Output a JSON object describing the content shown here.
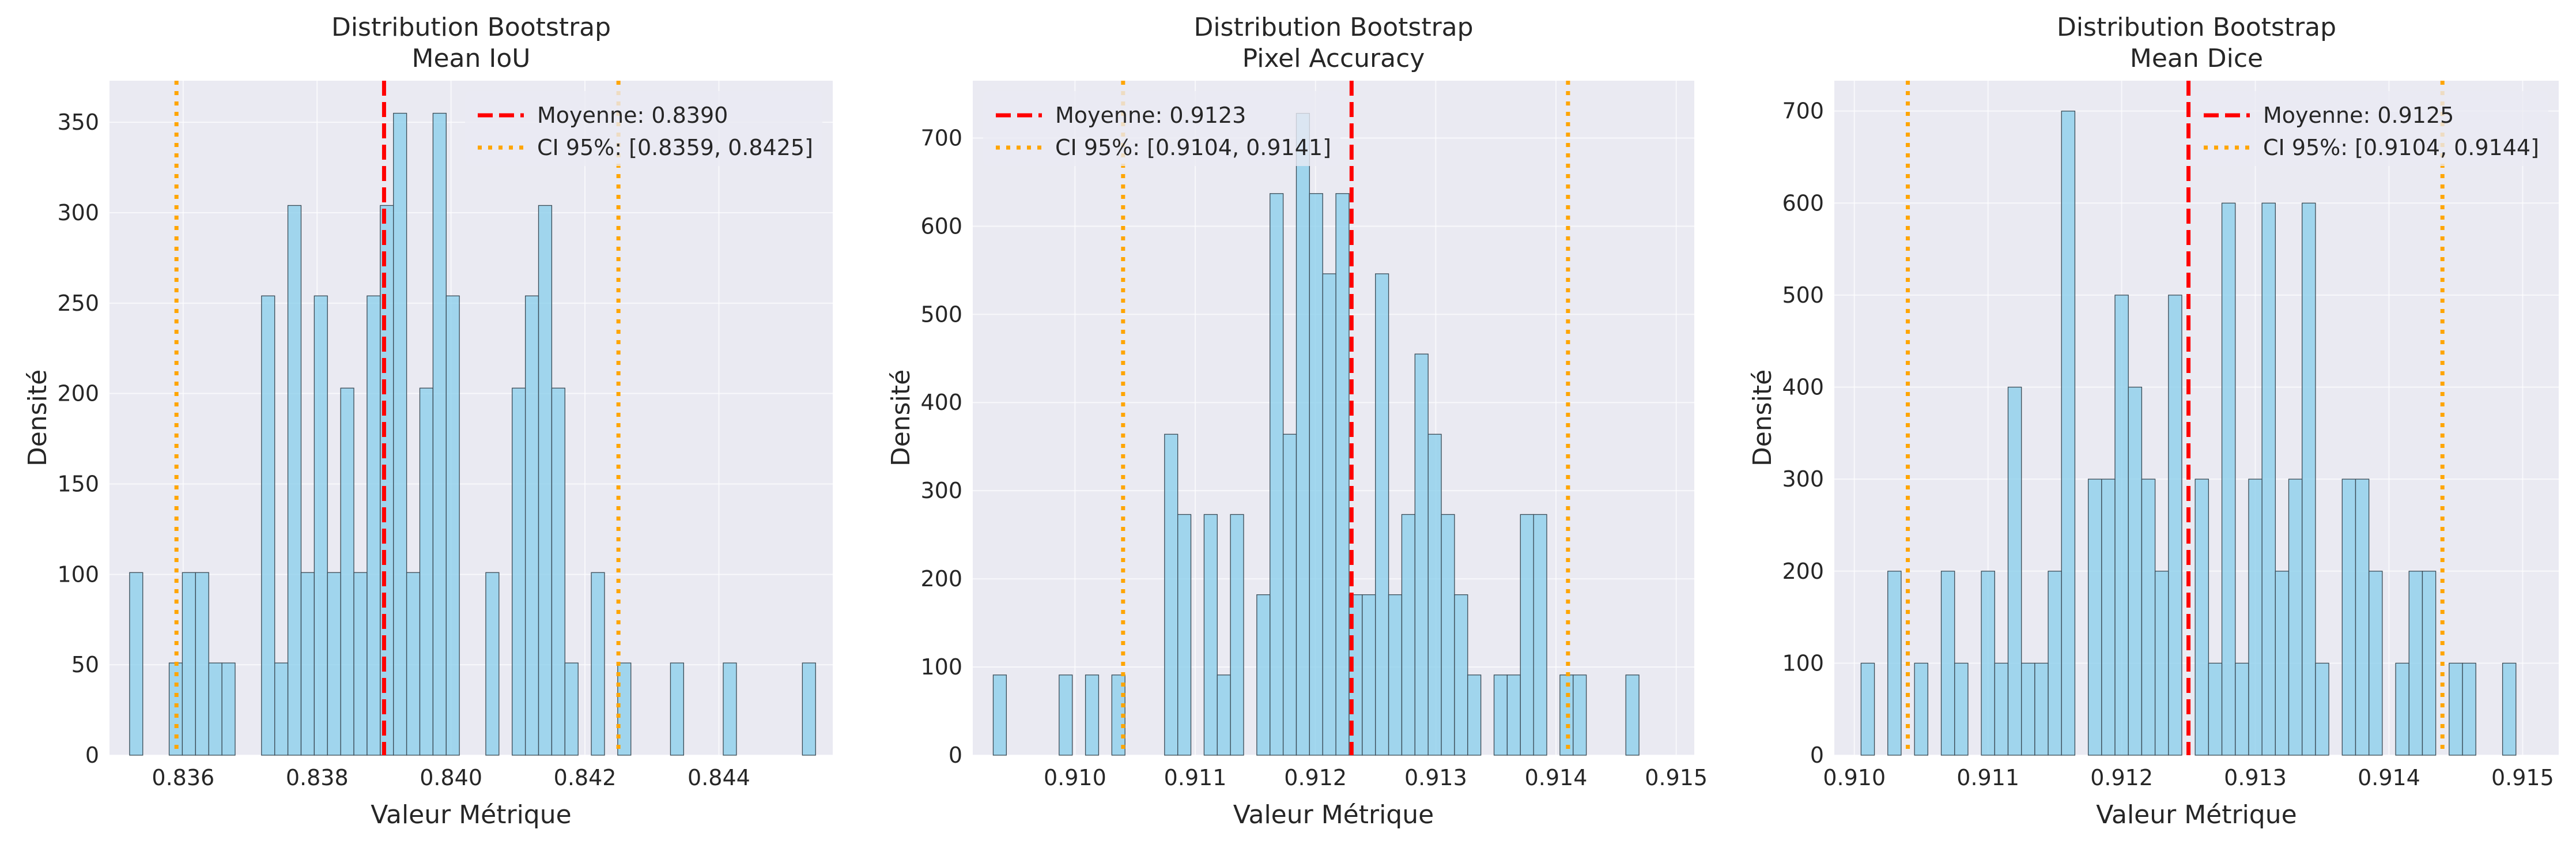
{
  "chart_data": [
    {
      "type": "histogram",
      "title_line1": "Distribution Bootstrap",
      "title_line2": "Mean IoU",
      "xlabel": "Valeur Métrique",
      "ylabel": "Densité",
      "xlim": [
        0.8349,
        0.8457
      ],
      "ylim": [
        0,
        373
      ],
      "xticks": [
        0.836,
        0.838,
        0.84,
        0.842,
        0.844
      ],
      "xtick_labels": [
        "0.836",
        "0.838",
        "0.840",
        "0.842",
        "0.844"
      ],
      "yticks": [
        0,
        50,
        100,
        150,
        200,
        250,
        300,
        350
      ],
      "ytick_labels": [
        "0",
        "50",
        "100",
        "150",
        "200",
        "250",
        "300",
        "350"
      ],
      "bins": {
        "start": 0.8352,
        "width": 0.000197
      },
      "values": [
        101,
        0,
        0,
        51,
        101,
        101,
        51,
        51,
        0,
        0,
        254,
        51,
        304,
        101,
        254,
        101,
        203,
        101,
        254,
        304,
        355,
        101,
        203,
        355,
        254,
        0,
        0,
        101,
        0,
        203,
        254,
        304,
        203,
        51,
        0,
        101,
        0,
        51,
        0,
        0,
        0,
        51,
        0,
        0,
        0,
        51,
        0,
        0,
        0,
        0,
        0,
        51
      ],
      "mean": 0.839,
      "ci": [
        0.8359,
        0.8425
      ],
      "legend_position": "upper right",
      "legend": [
        "Moyenne: 0.8390",
        "CI 95%: [0.8359, 0.8425]"
      ]
    },
    {
      "type": "histogram",
      "title_line1": "Distribution Bootstrap",
      "title_line2": "Pixel Accuracy",
      "xlabel": "Valeur Métrique",
      "ylabel": "Densité",
      "xlim": [
        0.90915,
        0.91515
      ],
      "ylim": [
        0,
        765
      ],
      "xticks": [
        0.91,
        0.911,
        0.912,
        0.913,
        0.914,
        0.915
      ],
      "xtick_labels": [
        "0.910",
        "0.911",
        "0.912",
        "0.913",
        "0.914",
        "0.915"
      ],
      "yticks": [
        0,
        100,
        200,
        300,
        400,
        500,
        600,
        700
      ],
      "ytick_labels": [
        "0",
        "100",
        "200",
        "300",
        "400",
        "500",
        "600",
        "700"
      ],
      "bins": {
        "start": 0.90932,
        "width": 0.0001096
      },
      "values": [
        91,
        0,
        0,
        0,
        0,
        91,
        0,
        91,
        0,
        91,
        0,
        0,
        0,
        364,
        273,
        0,
        273,
        91,
        273,
        0,
        182,
        637,
        364,
        728,
        637,
        546,
        637,
        182,
        182,
        546,
        182,
        273,
        455,
        364,
        273,
        182,
        91,
        0,
        91,
        91,
        273,
        273,
        0,
        91,
        91,
        0,
        0,
        0,
        91
      ],
      "mean": 0.9123,
      "ci": [
        0.9104,
        0.9141
      ],
      "legend_position": "upper left",
      "legend": [
        "Moyenne: 0.9123",
        "CI 95%: [0.9104, 0.9141]"
      ]
    },
    {
      "type": "histogram",
      "title_line1": "Distribution Bootstrap",
      "title_line2": "Mean Dice",
      "xlabel": "Valeur Métrique",
      "ylabel": "Densité",
      "xlim": [
        0.90985,
        0.91527
      ],
      "ylim": [
        0,
        733
      ],
      "xticks": [
        0.91,
        0.911,
        0.912,
        0.913,
        0.914,
        0.915
      ],
      "xtick_labels": [
        "0.910",
        "0.911",
        "0.912",
        "0.913",
        "0.914",
        "0.915"
      ],
      "yticks": [
        0,
        100,
        200,
        300,
        400,
        500,
        600,
        700
      ],
      "ytick_labels": [
        "0",
        "100",
        "200",
        "300",
        "400",
        "500",
        "600",
        "700"
      ],
      "bins": {
        "start": 0.91005,
        "width": 0.0001
      },
      "values": [
        100,
        0,
        200,
        0,
        100,
        0,
        200,
        100,
        0,
        200,
        100,
        400,
        100,
        100,
        200,
        700,
        0,
        300,
        300,
        500,
        400,
        300,
        200,
        500,
        0,
        300,
        100,
        600,
        100,
        300,
        600,
        200,
        300,
        600,
        100,
        0,
        300,
        300,
        200,
        0,
        100,
        200,
        200,
        0,
        100,
        100,
        0,
        0,
        100
      ],
      "mean": 0.9125,
      "ci": [
        0.9104,
        0.9144
      ],
      "legend_position": "upper right",
      "legend": [
        "Moyenne: 0.9125",
        "CI 95%: [0.9104, 0.9144]"
      ]
    }
  ],
  "colors": {
    "figure_bg": "#ffffff",
    "axes_bg": "#eaeaf2",
    "grid": "#ffffff",
    "bar_fill": "#87ceeb",
    "bar_edge": "#3a4a55",
    "mean_line": "#ff0000",
    "ci_line": "#ffa500",
    "text": "#262626"
  }
}
